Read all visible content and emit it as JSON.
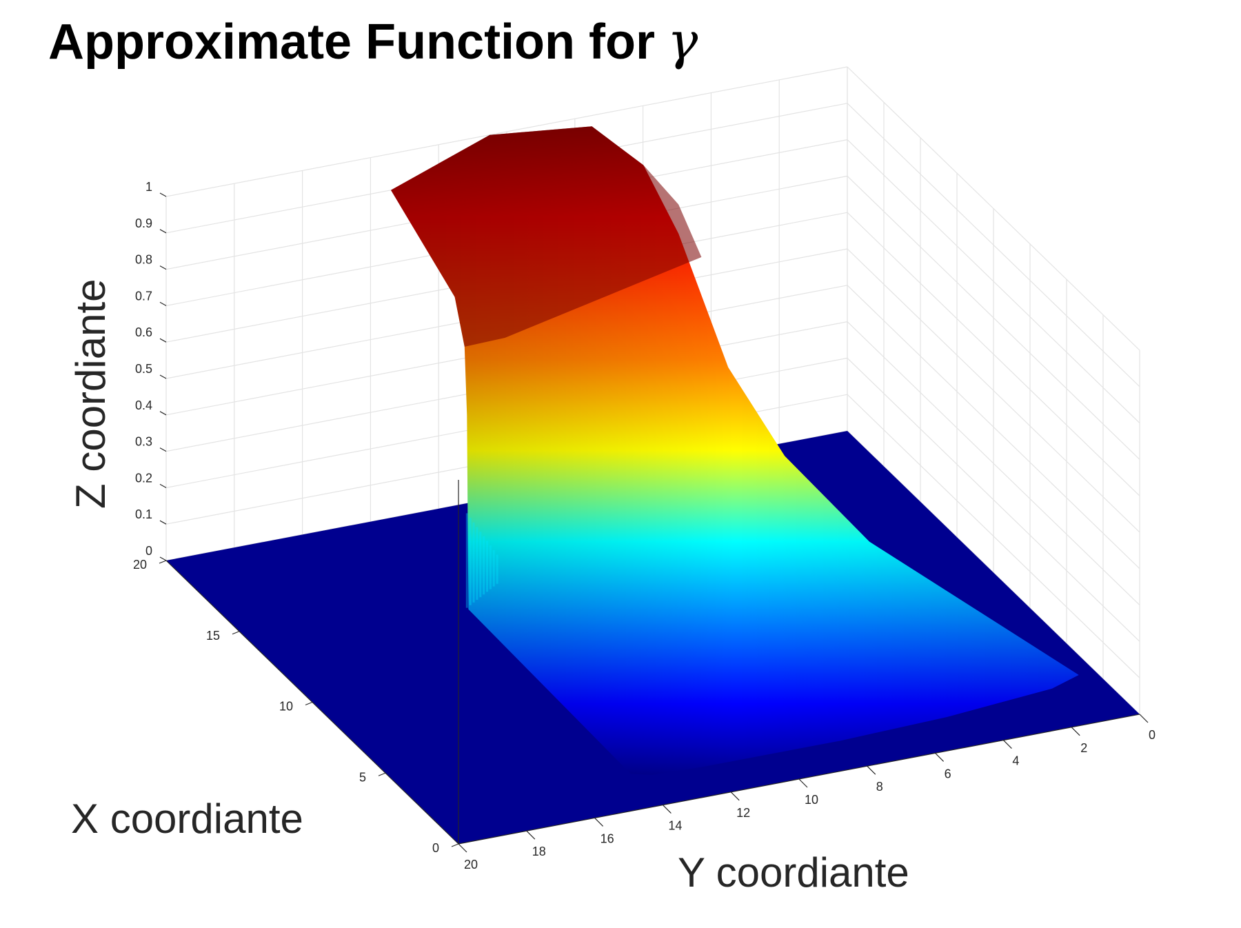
{
  "chart_data": {
    "type": "surface",
    "title": "Approximate Function for",
    "title_symbol": "γ",
    "xlabel": "X coordiante",
    "ylabel": "Y coordiante",
    "zlabel": "Z coordiante",
    "xlim": [
      0,
      20
    ],
    "ylim": [
      0,
      20
    ],
    "zlim": [
      0,
      1
    ],
    "x_ticks": [
      "0",
      "5",
      "10",
      "15",
      "20"
    ],
    "y_ticks": [
      "0",
      "2",
      "4",
      "6",
      "8",
      "10",
      "12",
      "14",
      "16",
      "18",
      "20"
    ],
    "z_ticks": [
      "0",
      "0.1",
      "0.2",
      "0.3",
      "0.4",
      "0.5",
      "0.6",
      "0.7",
      "0.8",
      "0.9",
      "1"
    ],
    "colormap": "jet",
    "grid": true,
    "surface": {
      "peak_value": 1.0,
      "peak_x": 17,
      "peak_y": 9,
      "plateau_x_range": [
        13.5,
        20
      ],
      "plateau_y_range": [
        5,
        14
      ],
      "baseline_value": 0
    }
  }
}
